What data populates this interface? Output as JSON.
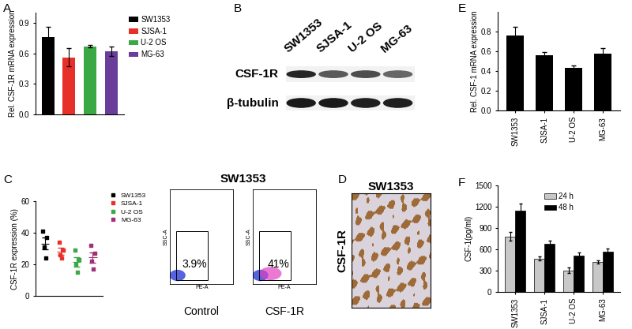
{
  "chart_data": [
    {
      "panel": "A",
      "type": "bar",
      "categories": [
        "SW1353",
        "SJSA-1",
        "U-2 OS",
        "MG-63"
      ],
      "values": [
        0.76,
        0.56,
        0.67,
        0.62
      ],
      "error": [
        0.1,
        0.09,
        0.015,
        0.05
      ],
      "colors": [
        "#000000",
        "#e8302a",
        "#3aa845",
        "#6a3d9a"
      ],
      "y_label": "Rel. CSF-1R mRNA expression",
      "ylim": [
        0.0,
        1.0
      ],
      "yticks": [
        0.0,
        0.3,
        0.6,
        0.9
      ],
      "legend": "upper left",
      "tick_labels": "y"
    },
    {
      "panel": "C",
      "type": "dot_plot",
      "y_label": "CSF-1R expression (%)",
      "ylim": [
        0,
        60
      ],
      "yticks": [
        0,
        20,
        40,
        60
      ],
      "series": [
        {
          "name": "SW1353",
          "color": "#000000",
          "values": [
            41,
            37,
            31,
            24
          ],
          "mean": 33.25,
          "error": 3.7
        },
        {
          "name": "SJSA-1",
          "color": "#e8302a",
          "values": [
            34,
            29,
            26,
            24
          ],
          "mean": 28.25,
          "error": 2.2
        },
        {
          "name": "U-2 OS",
          "color": "#3aa845",
          "values": [
            29,
            23,
            20,
            15
          ],
          "mean": 21.75,
          "error": 2.9
        },
        {
          "name": "MG-63",
          "color": "#a0307a",
          "values": [
            32,
            27,
            22,
            17
          ],
          "mean": 24.5,
          "error": 3.2
        }
      ],
      "legend": "upper left",
      "tick_labels": "y"
    },
    {
      "panel": "E",
      "type": "bar",
      "categories": [
        "SW1353",
        "SJSA-1",
        "U-2 OS",
        "MG-63"
      ],
      "values": [
        0.76,
        0.56,
        0.43,
        0.58
      ],
      "error": [
        0.09,
        0.03,
        0.03,
        0.05
      ],
      "color": "#000000",
      "y_label": "Rel. CSF-1 mRNA expression",
      "ylim": [
        0.0,
        1.0
      ],
      "yticks": [
        0.0,
        0.2,
        0.4,
        0.6,
        0.8
      ]
    },
    {
      "panel": "F",
      "type": "grouped_bar",
      "categories": [
        "SW1353",
        "SJSA-1",
        "U-2 OS",
        "MG-63"
      ],
      "series": [
        {
          "name": "24 h",
          "color": "#c8c8c8",
          "values": [
            780,
            470,
            300,
            420
          ],
          "error": [
            60,
            30,
            40,
            20
          ]
        },
        {
          "name": "48 h",
          "color": "#000000",
          "values": [
            1140,
            680,
            510,
            560
          ],
          "error": [
            100,
            40,
            40,
            50
          ]
        }
      ],
      "y_label": "CSF-1(pg/ml)",
      "ylim": [
        0,
        1500
      ],
      "yticks": [
        0,
        300,
        600,
        900,
        1200,
        1500
      ],
      "legend": "upper center"
    }
  ],
  "western_blot": {
    "panel": "B",
    "lanes": [
      "SW1353",
      "SJSA-1",
      "U-2 OS",
      "MG-63"
    ],
    "rows": [
      "CSF-1R",
      "β-tubulin"
    ]
  },
  "flow_cytometry": {
    "title": "SW1353",
    "x_label": "PE-A",
    "y_label": "SSC-A",
    "plots": [
      {
        "name": "Control",
        "gate_label": "3.9%",
        "color": "#2b3cd6"
      },
      {
        "name": "CSF-1R",
        "gate_label": "41%",
        "color": "#e040c0"
      }
    ]
  },
  "ihc": {
    "panel": "D",
    "title": "SW1353",
    "label": "CSF-1R"
  }
}
